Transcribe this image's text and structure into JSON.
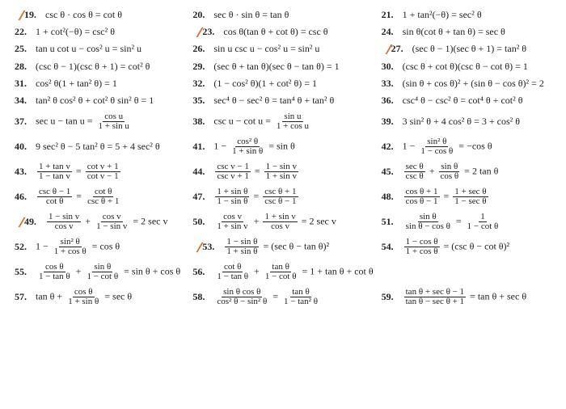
{
  "tick_color": "#df6a2d",
  "number_font_weight": "bold",
  "font_family": "Times New Roman, serif",
  "font_size_pt": 12,
  "problems": [
    {
      "n": "19.",
      "ticked": true,
      "text": "csc θ · cos θ = cot θ"
    },
    {
      "n": "20.",
      "text": "sec θ · sin θ = tan θ"
    },
    {
      "n": "21.",
      "text": "1 + tan²(−θ) = sec² θ"
    },
    {
      "n": "22.",
      "text": "1 + cot²(−θ) = csc² θ"
    },
    {
      "n": "23.",
      "ticked": true,
      "text": "cos θ(tan θ + cot θ) = csc θ"
    },
    {
      "n": "24.",
      "text": "sin θ(cot θ + tan θ) = sec θ"
    },
    {
      "n": "25.",
      "text": "tan u cot u − cos² u = sin² u"
    },
    {
      "n": "26.",
      "text": "sin u csc u − cos² u = sin² u"
    },
    {
      "n": "27.",
      "ticked": true,
      "text": "(sec θ − 1)(sec θ + 1) = tan² θ"
    },
    {
      "n": "28.",
      "text": "(csc θ − 1)(csc θ + 1) = cot² θ"
    },
    {
      "n": "29.",
      "text": "(sec θ + tan θ)(sec θ − tan θ) = 1"
    },
    {
      "n": "30.",
      "text": "(csc θ + cot θ)(csc θ − cot θ) = 1"
    },
    {
      "n": "31.",
      "text": "cos² θ(1 + tan² θ) = 1"
    },
    {
      "n": "32.",
      "text": "(1 − cos² θ)(1 + cot² θ) = 1"
    },
    {
      "n": "33.",
      "text": "(sin θ + cos θ)² + (sin θ − cos θ)² = 2"
    },
    {
      "n": "34.",
      "text": "tan² θ cos² θ + cot² θ sin² θ = 1"
    },
    {
      "n": "35.",
      "text": "sec⁴ θ − sec² θ = tan⁴ θ + tan² θ"
    },
    {
      "n": "36.",
      "text": "csc⁴ θ − csc² θ = cot⁴ θ + cot² θ"
    },
    {
      "n": "37.",
      "frac": true,
      "lhs": "sec u − tan u =",
      "top": "cos u",
      "bot": "1 + sin u"
    },
    {
      "n": "38.",
      "frac": true,
      "lhs": "csc u − cot u =",
      "top": "sin u",
      "bot": "1 + cos u"
    },
    {
      "n": "39.",
      "text": "3 sin² θ + 4 cos² θ = 3 + cos² θ"
    },
    {
      "n": "40.",
      "text": "9 sec² θ − 5 tan² θ = 5 + 4 sec² θ"
    },
    {
      "n": "41.",
      "frac2": true,
      "pre": "1 −",
      "top": "cos² θ",
      "bot": "1 + sin θ",
      "post": "= sin θ"
    },
    {
      "n": "42.",
      "frac2": true,
      "pre": "1 −",
      "top": "sin² θ",
      "bot": "1 − cos θ",
      "post": "= −cos θ"
    },
    {
      "n": "43.",
      "twofrac": true,
      "t1": "1 + tan v",
      "b1": "1 − tan v",
      "mid": "=",
      "t2": "cot v + 1",
      "b2": "cot v − 1"
    },
    {
      "n": "44.",
      "twofrac": true,
      "t1": "csc v − 1",
      "b1": "csc v + 1",
      "mid": "=",
      "t2": "1 − sin v",
      "b2": "1 + sin v"
    },
    {
      "n": "45.",
      "twofrac": true,
      "t1": "sec θ",
      "b1": "csc θ",
      "mid": "+",
      "t2": "sin θ",
      "b2": "cos θ",
      "post": "= 2 tan θ"
    },
    {
      "n": "46.",
      "twofrac": true,
      "t1": "csc θ − 1",
      "b1": "cot θ",
      "mid": "=",
      "t2": "cot θ",
      "b2": "csc θ + 1"
    },
    {
      "n": "47.",
      "twofrac": true,
      "t1": "1 + sin θ",
      "b1": "1 − sin θ",
      "mid": "=",
      "t2": "csc θ + 1",
      "b2": "csc θ − 1"
    },
    {
      "n": "48.",
      "twofrac": true,
      "t1": "cos θ + 1",
      "b1": "cos θ − 1",
      "mid": "=",
      "t2": "1 + sec θ",
      "b2": "1 − sec θ"
    },
    {
      "n": "49.",
      "ticked": true,
      "twofrac": true,
      "t1": "1 − sin v",
      "b1": "cos v",
      "mid": "+",
      "t2": "cos v",
      "b2": "1 − sin v",
      "post": "= 2 sec v"
    },
    {
      "n": "50.",
      "twofrac": true,
      "t1": "cos v",
      "b1": "1 + sin v",
      "mid": "+",
      "t2": "1 + sin v",
      "b2": "cos v",
      "post": "= 2 sec v"
    },
    {
      "n": "51.",
      "twofrac": true,
      "t1": "sin θ",
      "b1": "sin θ − cos θ",
      "mid": "=",
      "t2": "1",
      "b2": "1 − cot θ"
    },
    {
      "n": "52.",
      "frac2": true,
      "pre": "1 −",
      "top": "sin² θ",
      "bot": "1 + cos θ",
      "post": "= cos θ"
    },
    {
      "n": "53.",
      "ticked": true,
      "frac2": true,
      "pre": "",
      "top": "1 − sin θ",
      "bot": "1 + sin θ",
      "post": "= (sec θ − tan θ)²"
    },
    {
      "n": "54.",
      "frac2": true,
      "pre": "",
      "top": "1 − cos θ",
      "bot": "1 + cos θ",
      "post": "= (csc θ − cot θ)²"
    },
    {
      "n": "55.",
      "twofrac": true,
      "t1": "cos θ",
      "b1": "1 − tan θ",
      "mid": "+",
      "t2": "sin θ",
      "b2": "1 − cot θ",
      "post": "= sin θ + cos θ"
    },
    {
      "n": "56.",
      "twofrac": true,
      "t1": "cot θ",
      "b1": "1 − tan θ",
      "mid": "+",
      "t2": "tan θ",
      "b2": "1 − cot θ",
      "post": "= 1 + tan θ + cot θ"
    },
    {
      "n": "",
      "text": ""
    },
    {
      "n": "57.",
      "frac2": true,
      "pre": "tan θ +",
      "top": "cos θ",
      "bot": "1 + sin θ",
      "post": "= sec θ"
    },
    {
      "n": "58.",
      "twofrac": true,
      "t1": "sin θ cos θ",
      "b1": "cos² θ − sin² θ",
      "mid": "=",
      "t2": "tan θ",
      "b2": "1 − tan² θ"
    },
    {
      "n": "59.",
      "twofrac": true,
      "t1": "tan θ + sec θ − 1",
      "b1": "tan θ − sec θ + 1",
      "mid": "=",
      "post": "tan θ + sec θ"
    }
  ]
}
